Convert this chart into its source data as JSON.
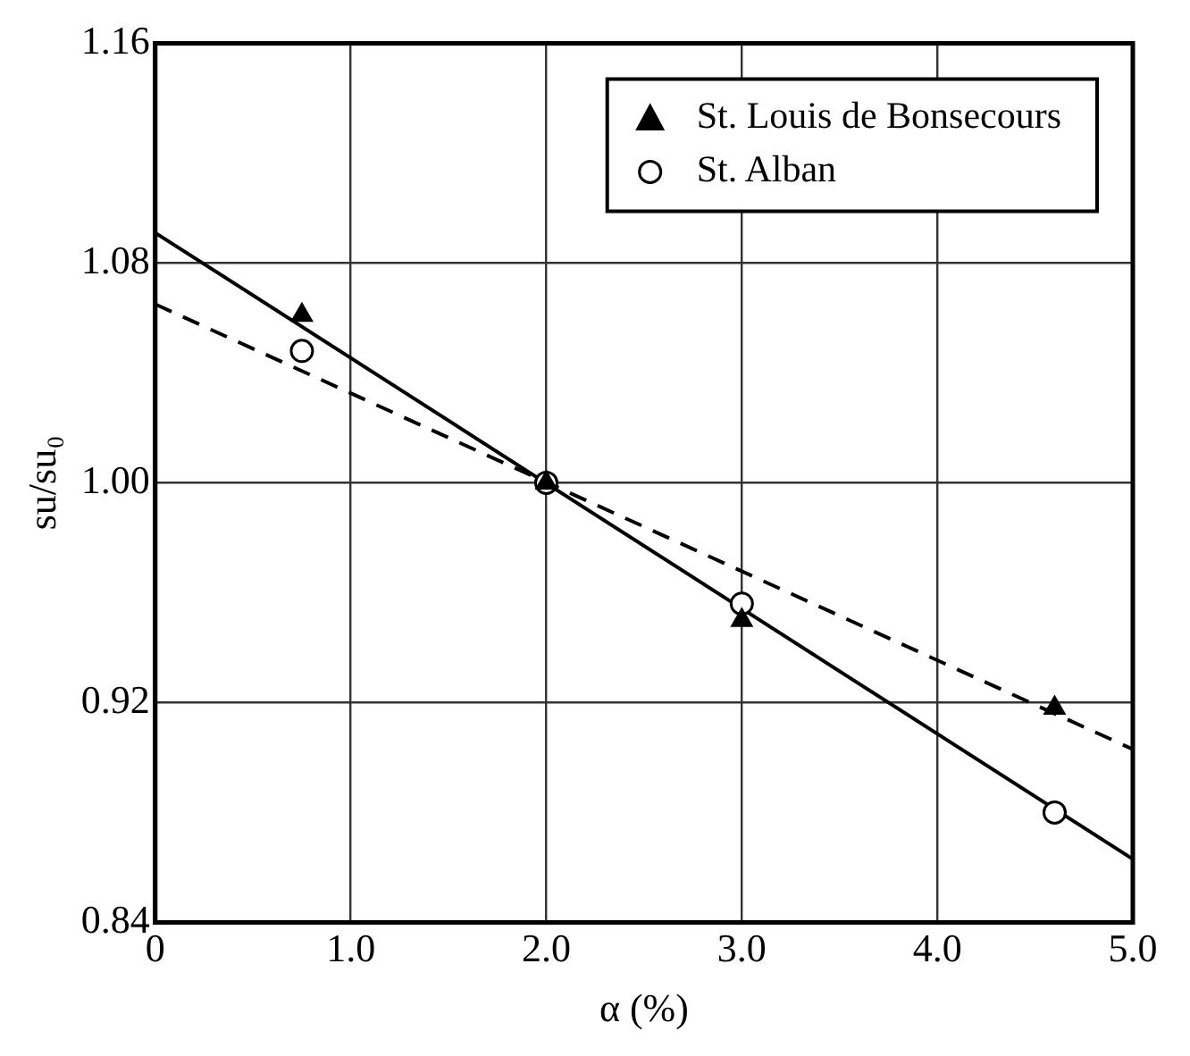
{
  "chart_data": {
    "type": "scatter",
    "xlabel": "α (%)",
    "ylabel": "su/su₀",
    "xlim": [
      0,
      5
    ],
    "xticks": [
      0,
      {
        "value": 1,
        "label": "1.0"
      },
      {
        "value": 2,
        "label": "2.0"
      },
      {
        "value": 3,
        "label": "3.0"
      },
      {
        "value": 4,
        "label": "4.0"
      },
      {
        "value": 5,
        "label": "5.0"
      }
    ],
    "ylim": [
      0.84,
      1.16
    ],
    "yticks": [
      0.84,
      0.92,
      {
        "value": 1,
        "label": "1.00"
      },
      1.08,
      1.16
    ],
    "grid": true,
    "legend": "top right",
    "series": [
      {
        "name": "St. Louis de Bonsecours",
        "type": "scatter",
        "marker": "triangle",
        "color": "#000000",
        "x": [
          0.75,
          2.0,
          3.0,
          4.6
        ],
        "values": [
          1.061,
          1.0,
          0.95,
          0.918
        ]
      },
      {
        "name": "St. Alban",
        "type": "scatter",
        "marker": "circle",
        "color": "#000000",
        "x": [
          0.75,
          2.0,
          3.0,
          4.6
        ],
        "values": [
          1.048,
          1.0,
          0.956,
          0.88
        ]
      },
      {
        "type": "line",
        "marker": "none",
        "line_style": "solid",
        "color": "#000000",
        "x": [
          0,
          5
        ],
        "values": [
          1.091,
          0.863
        ]
      },
      {
        "type": "line",
        "marker": "none",
        "line_style": "dashed",
        "color": "#000000",
        "x": [
          0,
          5
        ],
        "values": [
          1.065,
          0.903
        ]
      }
    ]
  }
}
